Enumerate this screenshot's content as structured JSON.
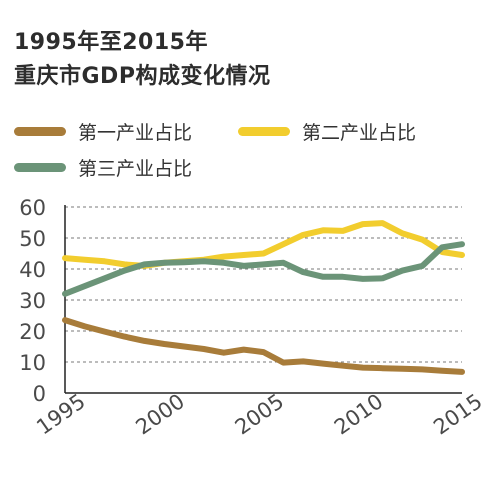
{
  "title_line1": "1995年至2015年",
  "title_line2": "重庆市GDP构成变化情况",
  "chart_data": {
    "type": "line",
    "x": [
      1995,
      1996,
      1997,
      1998,
      1999,
      2000,
      2001,
      2002,
      2003,
      2004,
      2005,
      2006,
      2007,
      2008,
      2009,
      2010,
      2011,
      2012,
      2013,
      2014,
      2015
    ],
    "series": [
      {
        "name": "第一产业占比",
        "color": "#a87c3a",
        "values": [
          23.5,
          21.5,
          19.8,
          18.2,
          16.8,
          15.8,
          15.0,
          14.2,
          13.0,
          14.0,
          13.2,
          9.8,
          10.2,
          9.5,
          8.8,
          8.2,
          8.0,
          7.8,
          7.6,
          7.2,
          6.8
        ]
      },
      {
        "name": "第二产业占比",
        "color": "#f2cd2e",
        "values": [
          43.5,
          43.0,
          42.5,
          41.5,
          41.0,
          42.0,
          42.5,
          43.0,
          44.0,
          44.5,
          45.0,
          48.0,
          51.0,
          52.5,
          52.3,
          54.5,
          54.8,
          51.5,
          49.5,
          45.5,
          44.5
        ]
      },
      {
        "name": "第三产业占比",
        "color": "#6b9478",
        "values": [
          32.0,
          34.5,
          37.0,
          39.5,
          41.5,
          42.0,
          42.2,
          42.5,
          42.0,
          41.0,
          41.5,
          42.0,
          39.0,
          37.5,
          37.5,
          36.8,
          37.0,
          39.5,
          41.0,
          47.0,
          48.0
        ]
      }
    ],
    "y_ticks": [
      0,
      10,
      20,
      30,
      40,
      50,
      60
    ],
    "x_ticks": [
      1995,
      2000,
      2005,
      2010,
      2015
    ],
    "ylim": [
      0,
      60
    ],
    "xlim": [
      1995,
      2015
    ],
    "grid": "horizontal dashed",
    "legend_position": "top"
  }
}
